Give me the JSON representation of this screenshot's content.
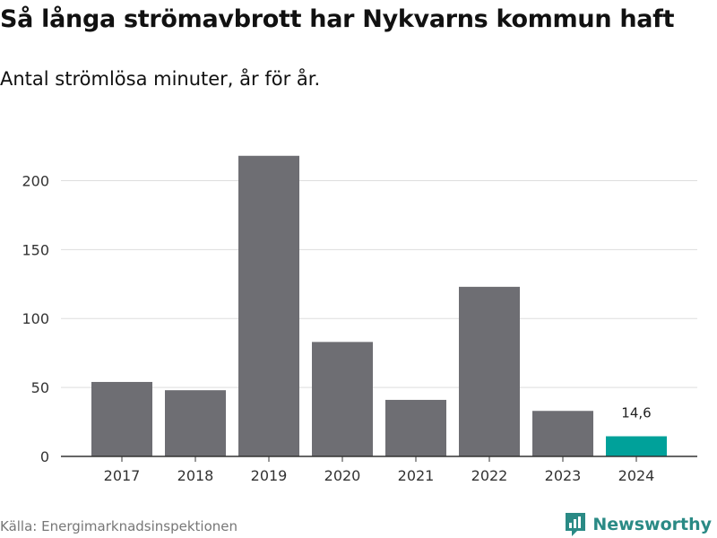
{
  "header": {
    "title": "Så långa strömavbrott har Nykvarns kommun haft",
    "subtitle": "Antal strömlösa minuter, år för år."
  },
  "footer": {
    "source": "Källa: Energimarknadsinspektionen",
    "brand": "Newsworthy",
    "brand_icon": "newsworthy-logo-icon"
  },
  "colors": {
    "bar": "#6e6e73",
    "highlight": "#00a19a",
    "grid": "#dddddd",
    "axis": "#333333",
    "brand": "#2a8a85"
  },
  "chart_data": {
    "type": "bar",
    "categories": [
      "2017",
      "2018",
      "2019",
      "2020",
      "2021",
      "2022",
      "2023",
      "2024"
    ],
    "values": [
      54,
      48,
      218,
      83,
      41,
      123,
      33,
      14.6
    ],
    "highlight_index": 7,
    "data_labels": [
      {
        "index": 7,
        "text": "14,6"
      }
    ],
    "yticks": [
      0,
      50,
      100,
      150,
      200
    ],
    "ylim": [
      0,
      225
    ],
    "grid": true,
    "xlabel": "",
    "ylabel": ""
  }
}
